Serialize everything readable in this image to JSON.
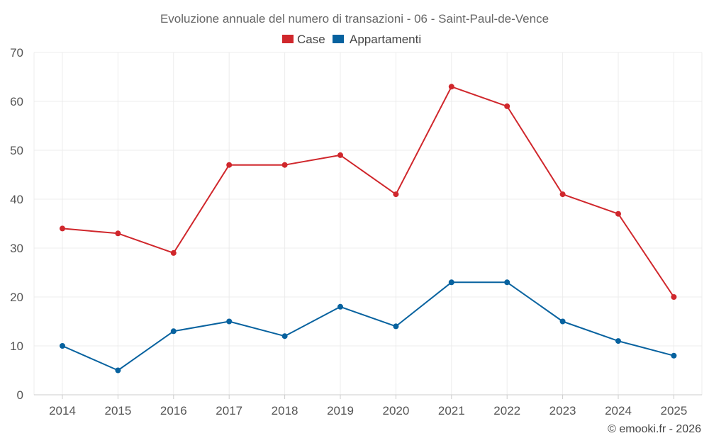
{
  "chart_data": {
    "type": "line",
    "title": "Evoluzione annuale del numero di transazioni - 06 - Saint-Paul-de-Vence",
    "categories": [
      "2014",
      "2015",
      "2016",
      "2017",
      "2018",
      "2019",
      "2020",
      "2021",
      "2022",
      "2023",
      "2024",
      "2025"
    ],
    "series": [
      {
        "name": "Case",
        "color": "#d0272c",
        "values": [
          34,
          33,
          29,
          47,
          47,
          49,
          41,
          63,
          59,
          41,
          37,
          20
        ]
      },
      {
        "name": "Appartamenti",
        "color": "#07629f",
        "values": [
          10,
          5,
          13,
          15,
          12,
          18,
          14,
          23,
          23,
          15,
          11,
          8
        ]
      }
    ],
    "ylim": [
      0,
      70
    ],
    "yticks": [
      0,
      10,
      20,
      30,
      40,
      50,
      60,
      70
    ],
    "xlabel": "",
    "ylabel": "",
    "grid": true,
    "legend": "top-center"
  },
  "credit": "© emooki.fr - 2026"
}
